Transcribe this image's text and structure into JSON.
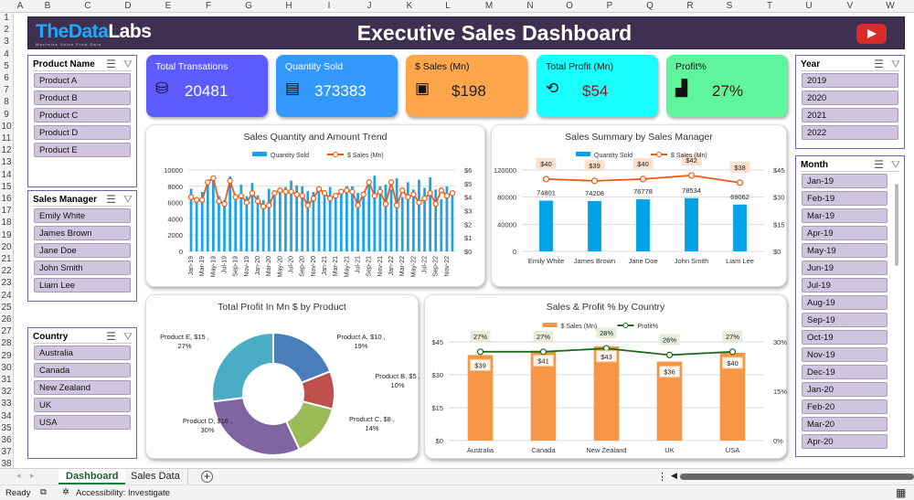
{
  "sheet": {
    "columns": [
      "A",
      "B",
      "C",
      "D",
      "E",
      "F",
      "G",
      "H",
      "I",
      "J",
      "K",
      "L",
      "M",
      "N",
      "O",
      "P",
      "Q",
      "R",
      "S",
      "T",
      "U",
      "V",
      "W"
    ],
    "rows": [
      "1",
      "2",
      "3",
      "4",
      "5",
      "6",
      "7",
      "8",
      "9",
      "10",
      "11",
      "12",
      "13",
      "14",
      "15",
      "16",
      "17",
      "18",
      "19",
      "20",
      "21",
      "22",
      "23",
      "24",
      "25",
      "26",
      "27",
      "28",
      "29",
      "30",
      "31",
      "32",
      "33",
      "34",
      "35",
      "36",
      "37",
      "38"
    ]
  },
  "banner": {
    "logo_part1": "TheData",
    "logo_part2": "Labs",
    "tagline": "Maximize Value From Data",
    "title": "Executive Sales Dashboard",
    "youtube_icon": "youtube-play-icon"
  },
  "slicers": {
    "product": {
      "title": "Product Name",
      "items": [
        "Product A",
        "Product B",
        "Product C",
        "Product D",
        "Product E"
      ]
    },
    "manager": {
      "title": "Sales Manager",
      "items": [
        "Emily White",
        "James Brown",
        "Jane Doe",
        "John Smith",
        "Liam Lee"
      ]
    },
    "country": {
      "title": "Country",
      "items": [
        "Australia",
        "Canada",
        "New Zealand",
        "UK",
        "USA"
      ]
    },
    "year": {
      "title": "Year",
      "items": [
        "2019",
        "2020",
        "2021",
        "2022"
      ]
    },
    "month": {
      "title": "Month",
      "items": [
        "Jan-19",
        "Feb-19",
        "Mar-19",
        "Apr-19",
        "May-19",
        "Jun-19",
        "Jul-19",
        "Aug-19",
        "Sep-19",
        "Oct-19",
        "Nov-19",
        "Dec-19",
        "Jan-20",
        "Feb-20",
        "Mar-20",
        "Apr-20"
      ]
    },
    "multi_select_icon": "☰",
    "clear_filter_icon": "⛛"
  },
  "kpis": [
    {
      "label": "Total Transations",
      "value": "20481",
      "icon": "coins-icon",
      "glyph": "⛁",
      "color": "#5b5bff",
      "text_color": "#ffffff"
    },
    {
      "label": "Quantity Sold",
      "value": "373383",
      "icon": "receipt-icon",
      "glyph": "▤",
      "color": "#3399ff",
      "text_color": "#ffffff"
    },
    {
      "label": "$ Sales (Mn)",
      "value": "$198",
      "icon": "cash-icon",
      "glyph": "▣",
      "color": "#ffa64d",
      "text_color": "#222222"
    },
    {
      "label": "Total Profit (Mn)",
      "value": "$54",
      "icon": "dollar-cycle-icon",
      "glyph": "⟲",
      "color": "#17ffff",
      "text_color": "#8b1a1a"
    },
    {
      "label": "Profit%",
      "value": "27%",
      "icon": "growth-chart-icon",
      "glyph": "▟",
      "color": "#5ff59d",
      "text_color": "#4a1010"
    }
  ],
  "chart_data": [
    {
      "type": "bar+line",
      "title": "Sales Quantity and Amount Trend",
      "categories": [
        "Jan-19",
        "Feb-19",
        "Mar-19",
        "Apr-19",
        "May-19",
        "Jun-19",
        "Jul-19",
        "Aug-19",
        "Sep-19",
        "Oct-19",
        "Nov-19",
        "Dec-19",
        "Jan-20",
        "Feb-20",
        "Mar-20",
        "Apr-20",
        "May-20",
        "Jun-20",
        "Jul-20",
        "Aug-20",
        "Sep-20",
        "Oct-20",
        "Nov-20",
        "Dec-20",
        "Jan-21",
        "Feb-21",
        "Mar-21",
        "Apr-21",
        "May-21",
        "Jun-21",
        "Jul-21",
        "Aug-21",
        "Sep-21",
        "Oct-21",
        "Nov-21",
        "Dec-21",
        "Jan-22",
        "Feb-22",
        "Mar-22",
        "Apr-22",
        "May-22",
        "Jun-22",
        "Jul-22",
        "Aug-22",
        "Sep-22",
        "Oct-22",
        "Nov-22",
        "Dec-22"
      ],
      "series": [
        {
          "name": "Quantity Sold",
          "axis": "left",
          "kind": "bar",
          "color": "#1aa3e8",
          "values": [
            7700,
            6200,
            7300,
            8200,
            8800,
            6800,
            6300,
            9200,
            6500,
            8200,
            6800,
            8400,
            6900,
            6300,
            7700,
            6900,
            7200,
            7900,
            8700,
            8100,
            8000,
            7400,
            7300,
            7800,
            7500,
            7900,
            7100,
            7600,
            8000,
            8000,
            7200,
            7300,
            8200,
            9300,
            8000,
            8200,
            7600,
            9000,
            6700,
            8500,
            7600,
            8800,
            7800,
            9100,
            7600,
            6400,
            8000,
            7400
          ]
        },
        {
          "name": "$ Sales (Mn)",
          "axis": "right",
          "kind": "line",
          "color": "#f05a14",
          "values": [
            4.0,
            3.8,
            3.8,
            5.1,
            5.4,
            3.7,
            3.5,
            5.2,
            4.0,
            4.1,
            3.6,
            4.3,
            3.7,
            3.3,
            3.4,
            4.3,
            4.5,
            4.4,
            4.4,
            4.2,
            4.1,
            3.4,
            3.9,
            4.6,
            4.3,
            3.9,
            4.1,
            4.4,
            4.5,
            4.4,
            3.4,
            4.2,
            5.1,
            4.1,
            4.4,
            3.5,
            5.1,
            3.4,
            4.5,
            4.0,
            4.2,
            3.6,
            3.9,
            4.3,
            3.5,
            4.5,
            4.1,
            4.3
          ]
        }
      ],
      "y_left": {
        "range": [
          0,
          10000
        ],
        "ticks": [
          "0",
          "2000",
          "4000",
          "6000",
          "8000",
          "10000"
        ]
      },
      "y_right": {
        "range": [
          0,
          6
        ],
        "ticks": [
          "$0",
          "$1",
          "$2",
          "$3",
          "$4",
          "$5",
          "$6"
        ]
      },
      "legend": "top",
      "grid": true
    },
    {
      "type": "bar+line",
      "title": "Sales Summary by Sales Manager",
      "categories": [
        "Emily White",
        "James Brown",
        "Jane Doe",
        "John Smith",
        "Liam Lee"
      ],
      "series": [
        {
          "name": "Quantity Sold",
          "axis": "left",
          "kind": "bar",
          "color": "#00a2e8",
          "values": [
            74801,
            74208,
            76778,
            78534,
            69062
          ],
          "labels": [
            "74801",
            "74208",
            "76778",
            "78534",
            "69062"
          ]
        },
        {
          "name": "$ Sales (Mn)",
          "axis": "right",
          "kind": "line",
          "color": "#f05a14",
          "values": [
            40,
            39,
            40,
            42,
            38
          ],
          "labels": [
            "$40",
            "$39",
            "$40",
            "$42",
            "$38"
          ]
        }
      ],
      "y_left": {
        "range": [
          0,
          120000
        ],
        "ticks": [
          "0",
          "40000",
          "80000",
          "120000"
        ]
      },
      "y_right": {
        "range": [
          0,
          45
        ],
        "ticks": [
          "$0",
          "$15",
          "$30",
          "$45"
        ]
      },
      "legend": "top",
      "grid": true
    },
    {
      "type": "pie",
      "title": "Total Profit In Mn $ by Product",
      "categories": [
        "Product A",
        "Product B",
        "Product C",
        "Product D",
        "Product E"
      ],
      "values": [
        10,
        5,
        8,
        16,
        15
      ],
      "percents": [
        19,
        10,
        14,
        30,
        27
      ],
      "labels": [
        "Product A, $10 , 19%",
        "Product B, $5 , 10%",
        "Product C, $8 , 14%",
        "Product D, $16 , 30%",
        "Product E, $15 , 27%"
      ],
      "colors": [
        "#4a7ebb",
        "#c0504d",
        "#9bbb59",
        "#8064a2",
        "#4bacc6"
      ],
      "donut": true
    },
    {
      "type": "bar+line",
      "title": "Sales & Profit % by Country",
      "categories": [
        "Australia",
        "Canada",
        "New Zealand",
        "UK",
        "USA"
      ],
      "series": [
        {
          "name": "$ Sales (Mn)",
          "axis": "left",
          "kind": "bar",
          "color": "#f79646",
          "values": [
            39,
            41,
            43,
            36,
            40
          ],
          "labels": [
            "$39",
            "$41",
            "$43",
            "$36",
            "$40"
          ]
        },
        {
          "name": "Profit%",
          "axis": "right",
          "kind": "line",
          "color": "#1e6b1e",
          "values": [
            27,
            27,
            28,
            26,
            27
          ],
          "labels": [
            "27%",
            "27%",
            "28%",
            "26%",
            "27%"
          ]
        }
      ],
      "y_left": {
        "range": [
          0,
          45
        ],
        "ticks": [
          "$0",
          "$15",
          "$30",
          "$45"
        ]
      },
      "y_right": {
        "range": [
          0,
          30
        ],
        "ticks": [
          "0%",
          "15%",
          "30%"
        ]
      },
      "legend": "top",
      "grid": true
    }
  ],
  "tabs": {
    "items": [
      "Dashboard",
      "Sales Data"
    ],
    "active": "Dashboard",
    "add": "+"
  },
  "status": {
    "ready": "Ready",
    "accessibility": "Accessibility: Investigate"
  }
}
